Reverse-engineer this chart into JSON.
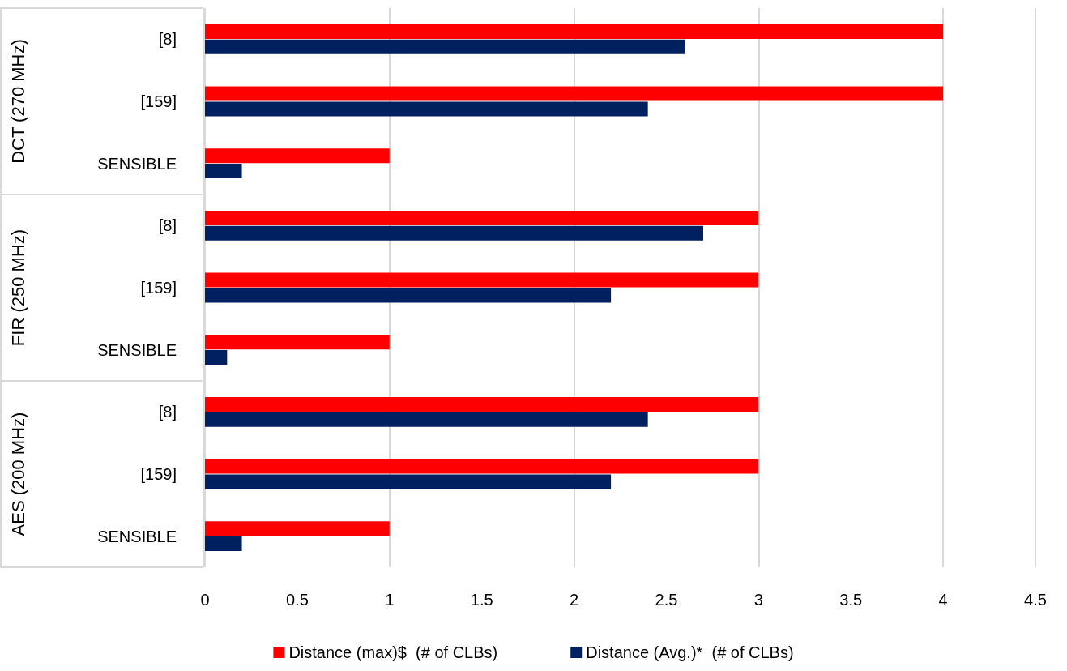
{
  "chart_data": {
    "type": "bar",
    "orientation": "horizontal",
    "categories": [
      "[8]",
      "[159]",
      "SENSIBLE",
      "[8]",
      "[159]",
      "SENSIBLE",
      "[8]",
      "[159]",
      "SENSIBLE"
    ],
    "series": [
      {
        "name": "Distance (max)$  (# of CLBs)",
        "color": "#ff0000",
        "values": [
          4,
          4,
          1,
          3,
          3,
          1,
          3,
          3,
          1
        ]
      },
      {
        "name": "Distance (Avg.)*  (# of CLBs)",
        "color": "#002060",
        "values": [
          2.6,
          2.4,
          0.2,
          2.7,
          2.2,
          0.12,
          2.4,
          2.2,
          0.2
        ]
      }
    ],
    "annotations": [
      "DCT (270 MHz)",
      "FIR (250 MHz)",
      "AES (200 MHz)"
    ],
    "xlim": [
      0,
      4.5
    ],
    "xticks": [
      0,
      0.5,
      1,
      1.5,
      2,
      2.5,
      3,
      3.5,
      4,
      4.5
    ],
    "grid": "x",
    "legend": "bottom"
  }
}
